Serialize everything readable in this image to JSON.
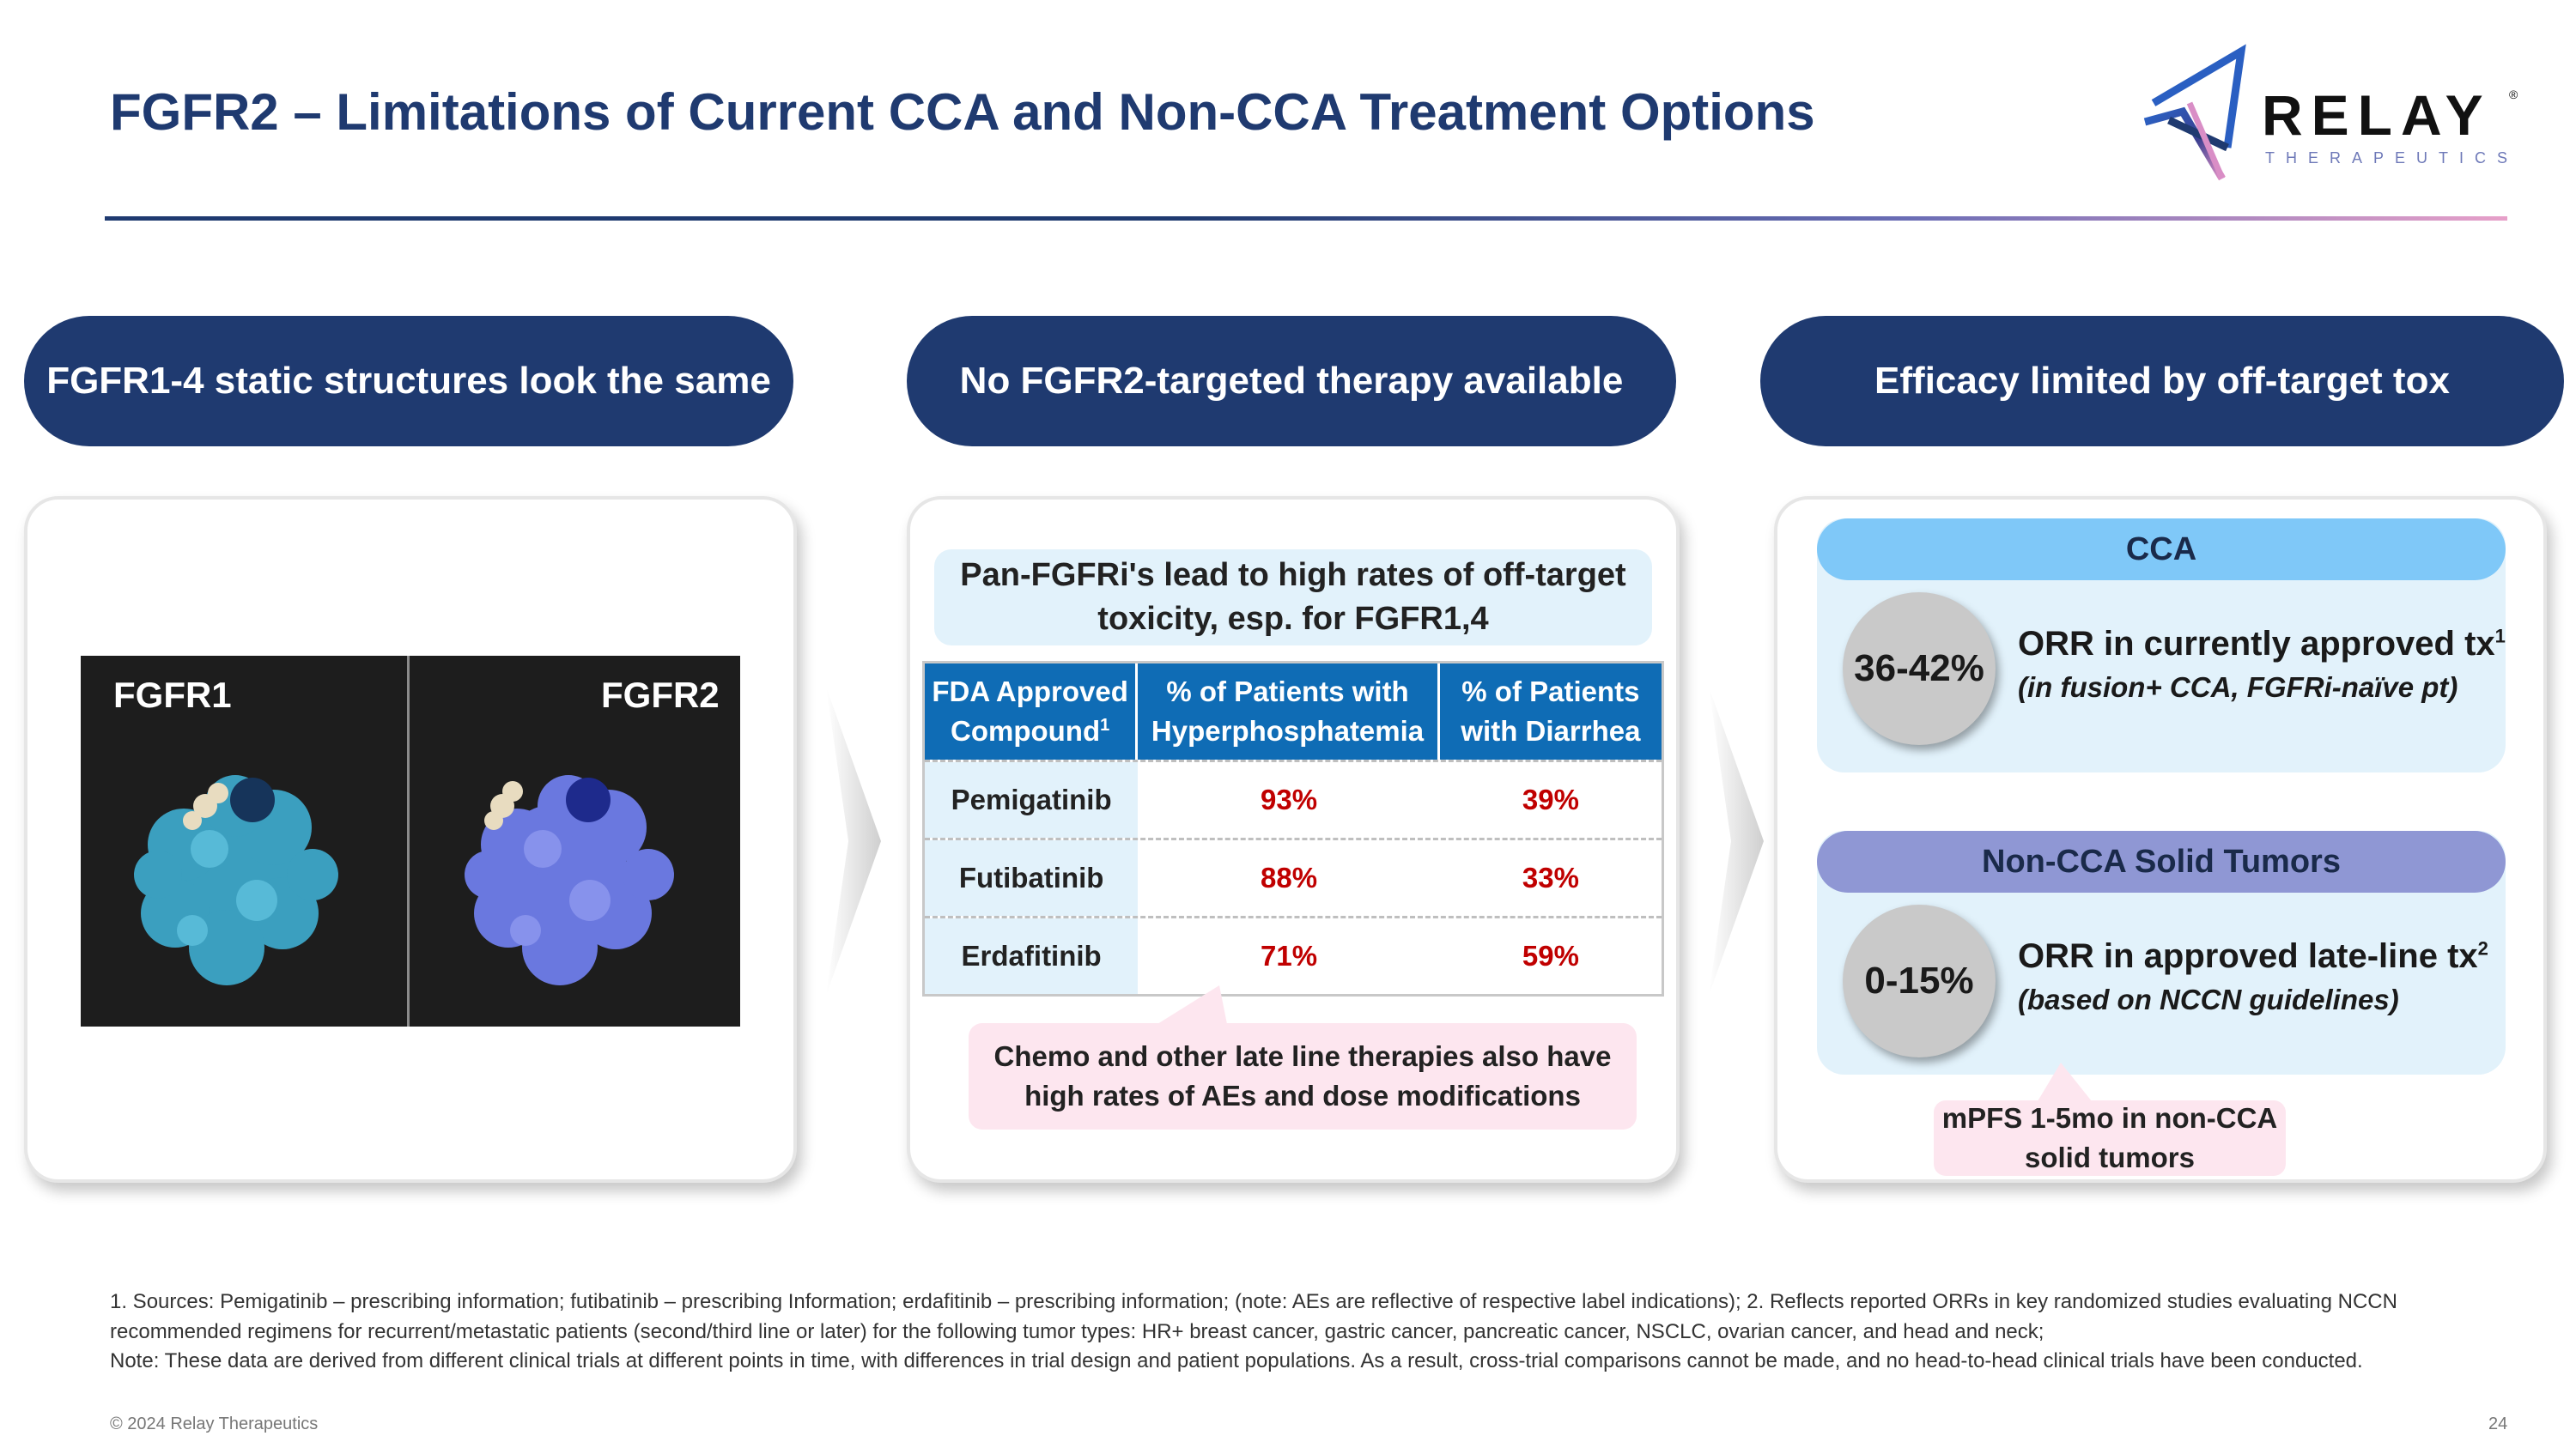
{
  "slide": {
    "title": "FGFR2 – Limitations of Current CCA and Non-CCA Treatment Options",
    "logo": {
      "word": "RELAY",
      "reg": "®",
      "sub": "THERAPEUTICS"
    }
  },
  "columns": [
    {
      "header": "FGFR1-4 static structures look the same"
    },
    {
      "header": "No FGFR2-targeted therapy available"
    },
    {
      "header": "Efficacy limited by off-target tox"
    }
  ],
  "structures": {
    "label_left": "FGFR1",
    "label_right": "FGFR2"
  },
  "toxicity": {
    "callout": "Pan-FGFRi's lead to high rates of off-target toxicity, esp. for FGFR1,4",
    "table": {
      "headers": [
        {
          "text": "FDA Approved Compound",
          "sup": "1"
        },
        {
          "text": "% of Patients with Hyperphosphatemia"
        },
        {
          "text": "% of Patients with Diarrhea"
        }
      ],
      "rows": [
        {
          "compound": "Pemigatinib",
          "hyperphosphatemia": "93%",
          "diarrhea": "39%"
        },
        {
          "compound": "Futibatinib",
          "hyperphosphatemia": "88%",
          "diarrhea": "33%"
        },
        {
          "compound": "Erdafitinib",
          "hyperphosphatemia": "71%",
          "diarrhea": "59%"
        }
      ]
    },
    "note": "Chemo and other late line therapies also have high rates of AEs and dose modifications"
  },
  "efficacy": {
    "cca": {
      "header": "CCA",
      "value": "36-42%",
      "main": "ORR in currently approved tx",
      "main_sup": "1",
      "sub": "(in fusion+ CCA, FGFRi-naïve pt)"
    },
    "non_cca": {
      "header": "Non-CCA Solid Tumors",
      "value": "0-15%",
      "main": "ORR in approved late-line tx",
      "main_sup": "2",
      "sub": "(based on NCCN guidelines)"
    },
    "mpfs": "mPFS 1-5mo in non-CCA solid tumors"
  },
  "footnotes": {
    "line1": "1. Sources: Pemigatinib – prescribing information; futibatinib – prescribing Information; erdafitinib – prescribing information; (note: AEs are reflective of respective label indications);  2. Reflects reported ORRs in key randomized studies evaluating NCCN recommended regimens for recurrent/metastatic patients (second/third line or later) for the following tumor types: HR+ breast cancer, gastric cancer, pancreatic cancer, NSCLC, ovarian cancer, and head and neck;",
    "line2": "Note: These data are derived from different clinical trials at different points in time, with differences in trial design and patient populations. As a result, cross-trial comparisons cannot be made, and no head-to-head clinical trials have been conducted."
  },
  "copyright": "© 2024 Relay Therapeutics",
  "page_number": "24",
  "colors": {
    "navy": "#1f3a70",
    "table_header": "#0f6cb5",
    "red_value": "#c00000",
    "light_blue": "#e2f2fb",
    "cca_head": "#7fc8f8",
    "noncca_head": "#8f97d4",
    "pink": "#fde6ef"
  }
}
